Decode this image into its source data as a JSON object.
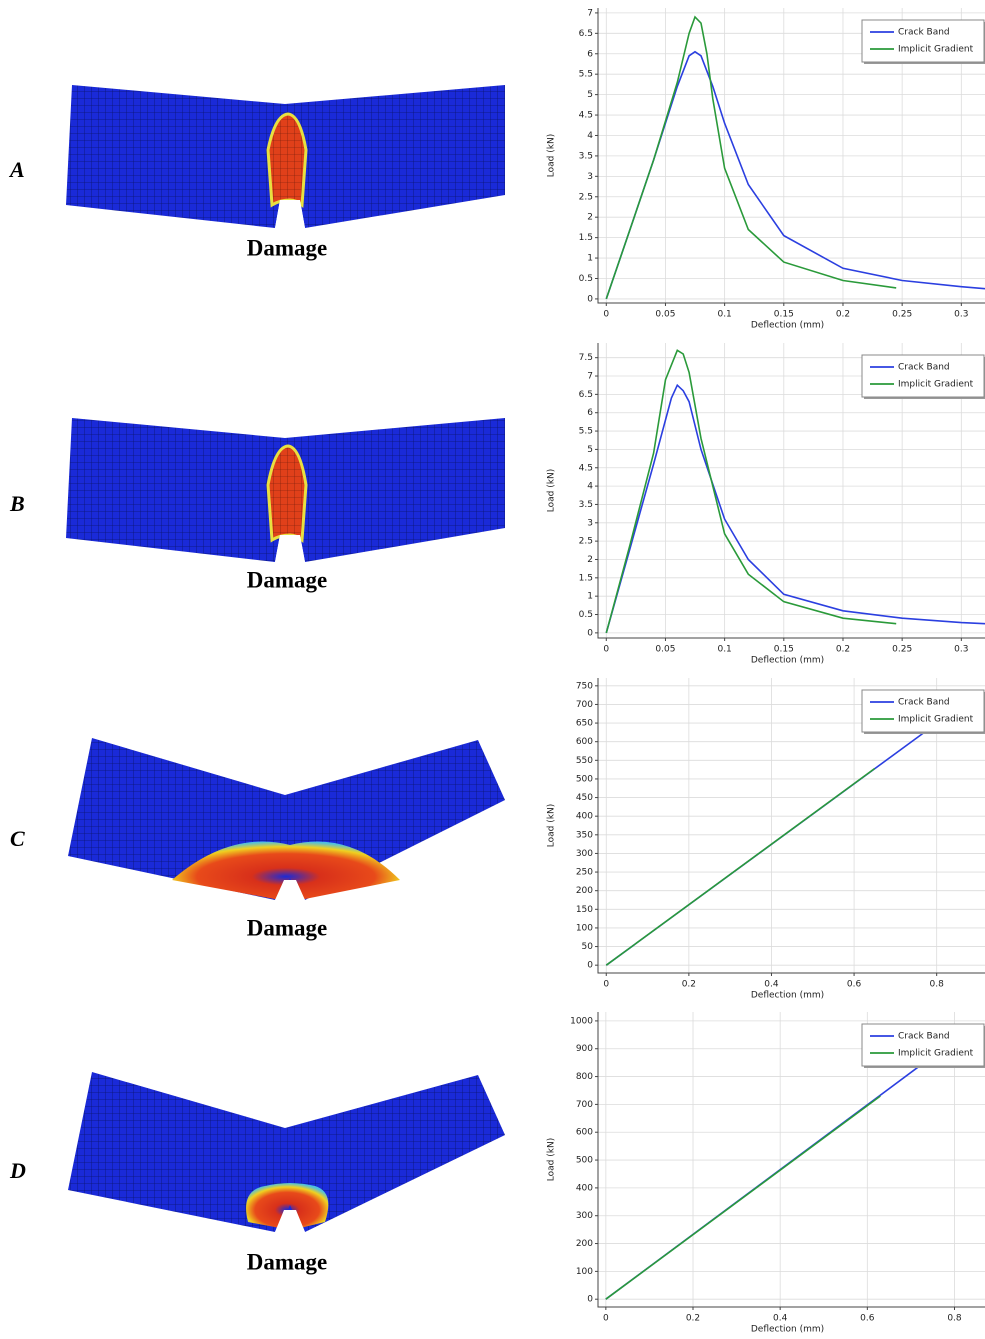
{
  "panels": [
    {
      "letter": "A",
      "caption": "Damage"
    },
    {
      "letter": "B",
      "caption": "Damage"
    },
    {
      "letter": "C",
      "caption": "Damage"
    },
    {
      "letter": "D",
      "caption": "Damage"
    }
  ],
  "chart_data": [
    {
      "type": "line",
      "xlabel": "Deflection (mm)",
      "ylabel": "Load (kN)",
      "grid": true,
      "legend": "upper right",
      "xlim": [
        -0.007,
        0.32
      ],
      "ylim": [
        -0.1,
        7.12
      ],
      "xticks": [
        0,
        0.05,
        0.1,
        0.15,
        0.2,
        0.25,
        0.3
      ],
      "yticks": [
        0,
        0.5,
        1,
        1.5,
        2,
        2.5,
        3,
        3.5,
        4,
        4.5,
        5,
        5.5,
        6,
        6.5,
        7
      ],
      "series": [
        {
          "name": "Crack Band",
          "color": "#2b3fe0",
          "x": [
            0,
            0.02,
            0.04,
            0.06,
            0.07,
            0.075,
            0.08,
            0.09,
            0.1,
            0.12,
            0.15,
            0.2,
            0.25,
            0.3,
            0.32
          ],
          "values": [
            0,
            1.7,
            3.4,
            5.2,
            5.95,
            6.05,
            5.95,
            5.2,
            4.3,
            2.8,
            1.55,
            0.75,
            0.45,
            0.3,
            0.25
          ]
        },
        {
          "name": "Implicit Gradient",
          "color": "#2a9a3a",
          "x": [
            0,
            0.02,
            0.04,
            0.06,
            0.07,
            0.075,
            0.08,
            0.085,
            0.09,
            0.1,
            0.12,
            0.15,
            0.2,
            0.245
          ],
          "values": [
            0,
            1.7,
            3.4,
            5.3,
            6.5,
            6.9,
            6.75,
            6.0,
            4.9,
            3.2,
            1.7,
            0.9,
            0.45,
            0.27
          ]
        }
      ]
    },
    {
      "type": "line",
      "xlabel": "Deflection (mm)",
      "ylabel": "Load (kN)",
      "grid": true,
      "legend": "upper right",
      "xlim": [
        -0.007,
        0.32
      ],
      "ylim": [
        -0.14,
        7.9
      ],
      "xticks": [
        0,
        0.05,
        0.1,
        0.15,
        0.2,
        0.25,
        0.3
      ],
      "yticks": [
        0,
        0.5,
        1,
        1.5,
        2,
        2.5,
        3,
        3.5,
        4,
        4.5,
        5,
        5.5,
        6,
        6.5,
        7,
        7.5
      ],
      "series": [
        {
          "name": "Crack Band",
          "color": "#2b3fe0",
          "x": [
            0,
            0.02,
            0.04,
            0.055,
            0.06,
            0.065,
            0.07,
            0.08,
            0.1,
            0.12,
            0.15,
            0.2,
            0.25,
            0.3,
            0.32
          ],
          "values": [
            0,
            2.3,
            4.6,
            6.4,
            6.75,
            6.6,
            6.3,
            5.0,
            3.1,
            2.0,
            1.05,
            0.6,
            0.4,
            0.28,
            0.25
          ]
        },
        {
          "name": "Implicit Gradient",
          "color": "#2a9a3a",
          "x": [
            0,
            0.02,
            0.04,
            0.05,
            0.06,
            0.065,
            0.07,
            0.08,
            0.1,
            0.12,
            0.15,
            0.2,
            0.245
          ],
          "values": [
            0,
            2.4,
            4.9,
            6.9,
            7.7,
            7.6,
            7.1,
            5.3,
            2.7,
            1.6,
            0.85,
            0.4,
            0.25
          ]
        }
      ]
    },
    {
      "type": "line",
      "xlabel": "Deflection (mm)",
      "ylabel": "Load (kN)",
      "grid": true,
      "legend": "upper right",
      "xlim": [
        -0.02,
        0.917
      ],
      "ylim": [
        -21,
        771
      ],
      "xticks": [
        0,
        0.2,
        0.4,
        0.6,
        0.8
      ],
      "yticks": [
        0,
        50,
        100,
        150,
        200,
        250,
        300,
        350,
        400,
        450,
        500,
        550,
        600,
        650,
        700,
        750
      ],
      "series": [
        {
          "name": "Crack Band",
          "color": "#2b3fe0",
          "x": [
            0,
            0.77
          ],
          "values": [
            0,
            625
          ]
        },
        {
          "name": "Implicit Gradient",
          "color": "#2a9a3a",
          "x": [
            0,
            0.65
          ],
          "values": [
            0,
            528
          ]
        }
      ]
    },
    {
      "type": "line",
      "xlabel": "Deflection (mm)",
      "ylabel": "Load (kN)",
      "grid": true,
      "legend": "upper right",
      "xlim": [
        -0.018,
        0.87
      ],
      "ylim": [
        -28,
        1032
      ],
      "xticks": [
        0,
        0.2,
        0.4,
        0.6,
        0.8
      ],
      "yticks": [
        0,
        100,
        200,
        300,
        400,
        500,
        600,
        700,
        800,
        900,
        1000
      ],
      "series": [
        {
          "name": "Crack Band",
          "color": "#2b3fe0",
          "x": [
            0,
            0.73
          ],
          "values": [
            0,
            850
          ]
        },
        {
          "name": "Implicit Gradient",
          "color": "#2a9a3a",
          "x": [
            0,
            0.63
          ],
          "values": [
            0,
            730
          ]
        }
      ]
    }
  ]
}
